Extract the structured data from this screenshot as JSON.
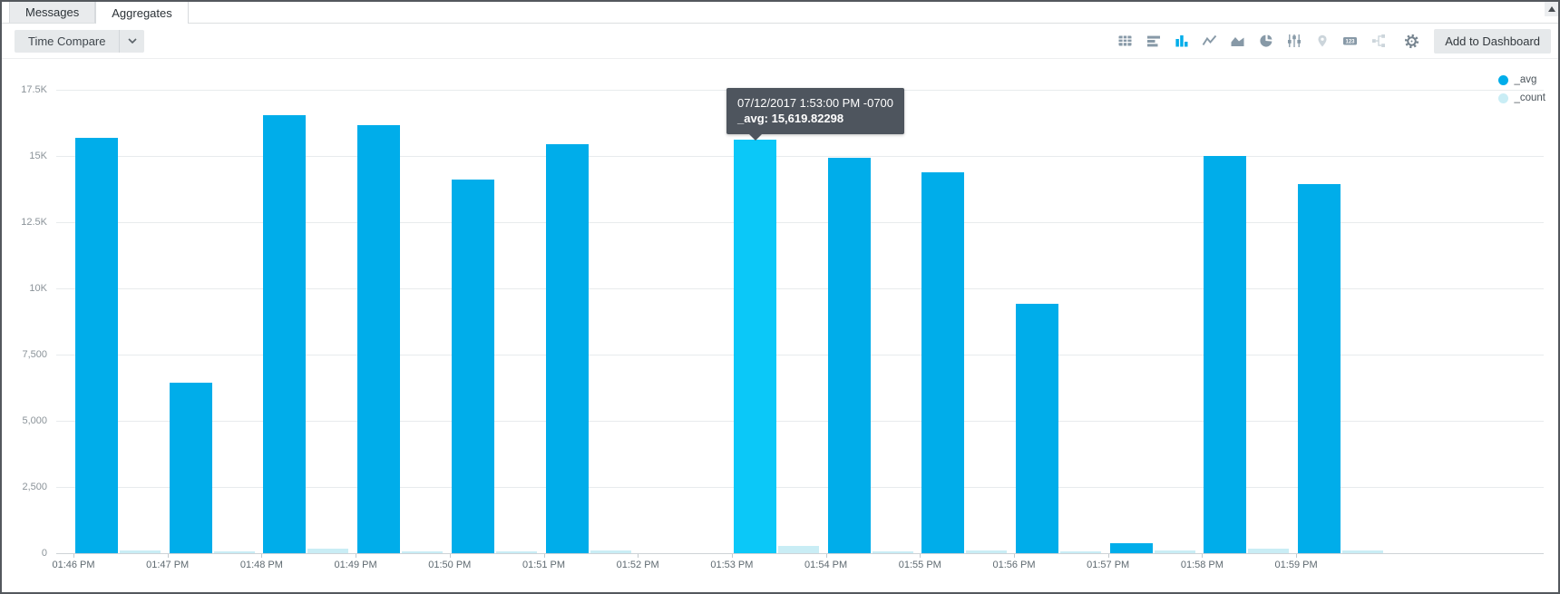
{
  "tabs": [
    {
      "label": "Messages",
      "active": false
    },
    {
      "label": "Aggregates",
      "active": true
    }
  ],
  "toolbar": {
    "time_compare_label": "Time Compare",
    "add_to_dashboard_label": "Add to Dashboard",
    "icons": [
      {
        "name": "table",
        "state": "normal"
      },
      {
        "name": "bar-chart-horizontal",
        "state": "normal"
      },
      {
        "name": "bar-chart-vertical",
        "state": "active"
      },
      {
        "name": "line-chart",
        "state": "normal"
      },
      {
        "name": "area-chart",
        "state": "normal"
      },
      {
        "name": "pie-chart",
        "state": "normal"
      },
      {
        "name": "box-plot",
        "state": "normal"
      },
      {
        "name": "map-pin",
        "state": "disabled"
      },
      {
        "name": "single-value-123",
        "state": "normal"
      },
      {
        "name": "transaction",
        "state": "disabled"
      },
      {
        "name": "settings-gear",
        "state": "gear"
      }
    ]
  },
  "scrollbar": {
    "up_arrow": "triangle-up"
  },
  "tooltip": {
    "title": "07/12/2017 1:53:00 PM -0700",
    "label": "_avg:",
    "value": "15,619.82298"
  },
  "colors": {
    "avg_bar": "#00ADEA",
    "avg_bar_highlight": "#0BC8F8",
    "count_bar": "#C9EDF5",
    "active_icon": "#00ADE9",
    "tooltip_bg": "#4E555E"
  },
  "chart_data": {
    "type": "bar",
    "title": "",
    "xlabel": "",
    "ylabel": "",
    "categories": [
      "01:46 PM",
      "01:47 PM",
      "01:48 PM",
      "01:49 PM",
      "01:50 PM",
      "01:51 PM",
      "01:52 PM",
      "01:53 PM",
      "01:54 PM",
      "01:55 PM",
      "01:56 PM",
      "01:57 PM",
      "01:58 PM",
      "01:59 PM"
    ],
    "series": [
      {
        "name": "_avg",
        "color": "#00ADEA",
        "highlight_color": "#0BC8F8",
        "values": [
          15700,
          6450,
          16530,
          16150,
          14100,
          15450,
          0,
          15619.82298,
          14920,
          14390,
          9430,
          380,
          14990,
          13940
        ]
      },
      {
        "name": "_count",
        "color": "#C9EDF5",
        "values": [
          110,
          70,
          180,
          80,
          80,
          100,
          0,
          270,
          80,
          90,
          70,
          90,
          170,
          90
        ]
      }
    ],
    "ylim": [
      0,
      17500
    ],
    "ytick_values": [
      0,
      2500,
      5000,
      7500,
      10000,
      12500,
      15000,
      17500
    ],
    "ytick_labels": [
      "0",
      "2,500",
      "5,000",
      "7,500",
      "10K",
      "12.5K",
      "15K",
      "17.5K"
    ],
    "highlighted_index": 7,
    "grid": true,
    "legend_position": "top-right"
  }
}
